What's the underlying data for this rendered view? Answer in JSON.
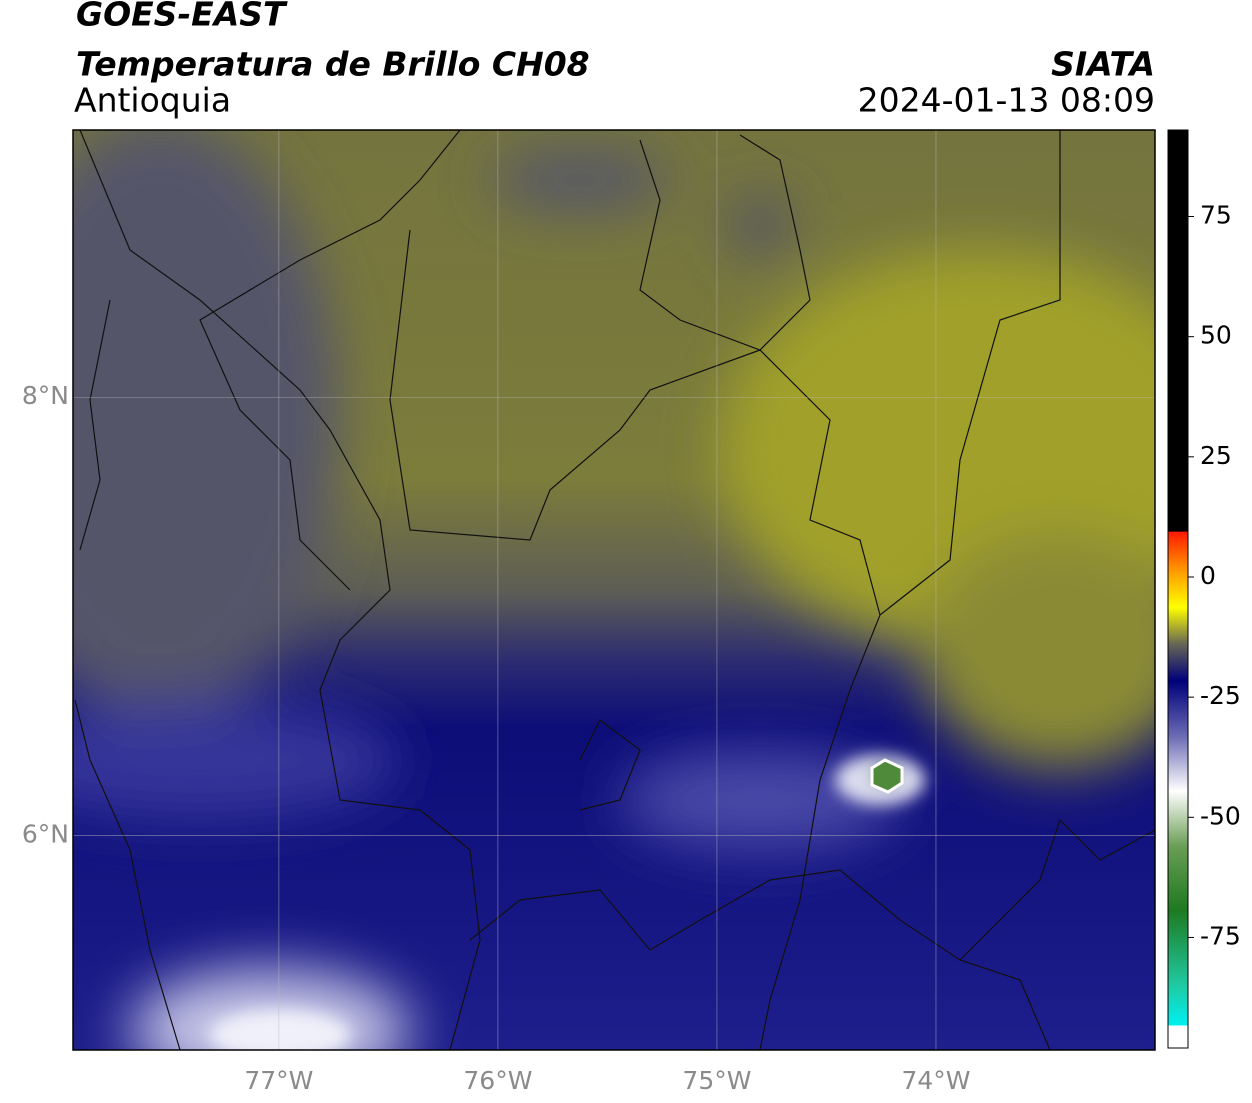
{
  "header": {
    "title": "GOES-EAST",
    "subtitle": "Temperatura de Brillo CH08",
    "region": "Antioquia",
    "source": "SIATA",
    "timestamp": "2024-01-13 08:09"
  },
  "map": {
    "lonlim": [
      -77.94,
      -73.0
    ],
    "latlim": [
      5.02,
      9.22
    ],
    "lon_ticks": [
      {
        "value": -77,
        "label": "77°W"
      },
      {
        "value": -76,
        "label": "76°W"
      },
      {
        "value": -75,
        "label": "75°W"
      },
      {
        "value": -74,
        "label": "74°W"
      }
    ],
    "lat_ticks": [
      {
        "value": 6,
        "label": "6°N"
      },
      {
        "value": 8,
        "label": "8°N"
      }
    ],
    "grid": true
  },
  "colorbar": {
    "range": [
      -98,
      93
    ],
    "ticks": [
      75,
      50,
      25,
      0,
      -25,
      -50,
      -75
    ]
  }
}
